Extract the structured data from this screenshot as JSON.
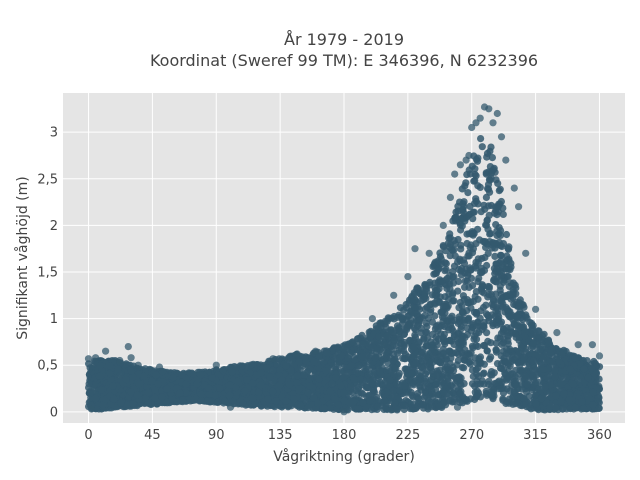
{
  "chart_data": {
    "type": "scatter",
    "title_lines": [
      "År 1979 - 2019",
      "Koordinat (Sweref 99 TM): E 346396, N 6232396"
    ],
    "xlabel": "Vågriktning (grader)",
    "ylabel": "Signifikant våghöjd (m)",
    "xlim": [
      -18,
      378
    ],
    "ylim": [
      -0.12,
      3.42
    ],
    "xticks": [
      0,
      45,
      90,
      135,
      180,
      225,
      270,
      315,
      360
    ],
    "xtick_labels": [
      "0",
      "45",
      "90",
      "135",
      "180",
      "225",
      "270",
      "315",
      "360"
    ],
    "yticks": [
      0,
      0.5,
      1,
      1.5,
      2,
      2.5,
      3
    ],
    "ytick_labels": [
      "0",
      "0,5",
      "1",
      "1,5",
      "2",
      "2,5",
      "3"
    ],
    "grid": true,
    "marker_color": "#34596e",
    "plot_background": "#e5e5e5",
    "envelope": {
      "direction": [
        0,
        10,
        20,
        30,
        45,
        60,
        75,
        90,
        105,
        120,
        135,
        150,
        165,
        180,
        195,
        210,
        225,
        240,
        250,
        260,
        265,
        270,
        275,
        280,
        285,
        290,
        295,
        300,
        310,
        320,
        330,
        340,
        350,
        360
      ],
      "upper_height": [
        0.55,
        0.55,
        0.55,
        0.5,
        0.45,
        0.42,
        0.42,
        0.45,
        0.5,
        0.52,
        0.58,
        0.63,
        0.65,
        0.72,
        0.85,
        1.0,
        1.2,
        1.5,
        1.8,
        2.2,
        2.5,
        2.75,
        2.95,
        3.0,
        2.8,
        2.4,
        1.9,
        1.4,
        1.0,
        0.85,
        0.7,
        0.62,
        0.55,
        0.55
      ],
      "lower_height": [
        0.03,
        0.03,
        0.05,
        0.06,
        0.08,
        0.1,
        0.12,
        0.1,
        0.08,
        0.06,
        0.05,
        0.04,
        0.03,
        0.02,
        0.02,
        0.02,
        0.02,
        0.03,
        0.05,
        0.08,
        0.1,
        0.12,
        0.15,
        0.15,
        0.12,
        0.1,
        0.08,
        0.05,
        0.03,
        0.02,
        0.02,
        0.03,
        0.03,
        0.03
      ]
    },
    "outlier_points": [
      {
        "x": 0,
        "y": 0.57
      },
      {
        "x": 5,
        "y": 0.58
      },
      {
        "x": 12,
        "y": 0.65
      },
      {
        "x": 22,
        "y": 0.55
      },
      {
        "x": 28,
        "y": 0.7
      },
      {
        "x": 30,
        "y": 0.58
      },
      {
        "x": 35,
        "y": 0.5
      },
      {
        "x": 50,
        "y": 0.48
      },
      {
        "x": 90,
        "y": 0.5
      },
      {
        "x": 130,
        "y": 0.57
      },
      {
        "x": 147,
        "y": 0.62
      },
      {
        "x": 160,
        "y": 0.65
      },
      {
        "x": 200,
        "y": 1.0
      },
      {
        "x": 215,
        "y": 1.25
      },
      {
        "x": 225,
        "y": 1.45
      },
      {
        "x": 230,
        "y": 1.75
      },
      {
        "x": 240,
        "y": 1.7
      },
      {
        "x": 250,
        "y": 2.0
      },
      {
        "x": 255,
        "y": 2.3
      },
      {
        "x": 258,
        "y": 2.55
      },
      {
        "x": 262,
        "y": 2.65
      },
      {
        "x": 266,
        "y": 2.7
      },
      {
        "x": 268,
        "y": 2.75
      },
      {
        "x": 270,
        "y": 3.05
      },
      {
        "x": 273,
        "y": 3.1
      },
      {
        "x": 276,
        "y": 3.15
      },
      {
        "x": 279,
        "y": 3.27
      },
      {
        "x": 282,
        "y": 3.25
      },
      {
        "x": 285,
        "y": 3.1
      },
      {
        "x": 288,
        "y": 3.2
      },
      {
        "x": 291,
        "y": 2.95
      },
      {
        "x": 294,
        "y": 2.7
      },
      {
        "x": 300,
        "y": 2.4
      },
      {
        "x": 303,
        "y": 2.2
      },
      {
        "x": 308,
        "y": 1.7
      },
      {
        "x": 315,
        "y": 1.1
      },
      {
        "x": 330,
        "y": 0.85
      },
      {
        "x": 345,
        "y": 0.72
      },
      {
        "x": 355,
        "y": 0.72
      },
      {
        "x": 360,
        "y": 0.6
      },
      {
        "x": 2,
        "y": 0.03
      },
      {
        "x": 100,
        "y": 0.05
      },
      {
        "x": 180,
        "y": 0.0
      },
      {
        "x": 260,
        "y": 0.05
      }
    ]
  }
}
